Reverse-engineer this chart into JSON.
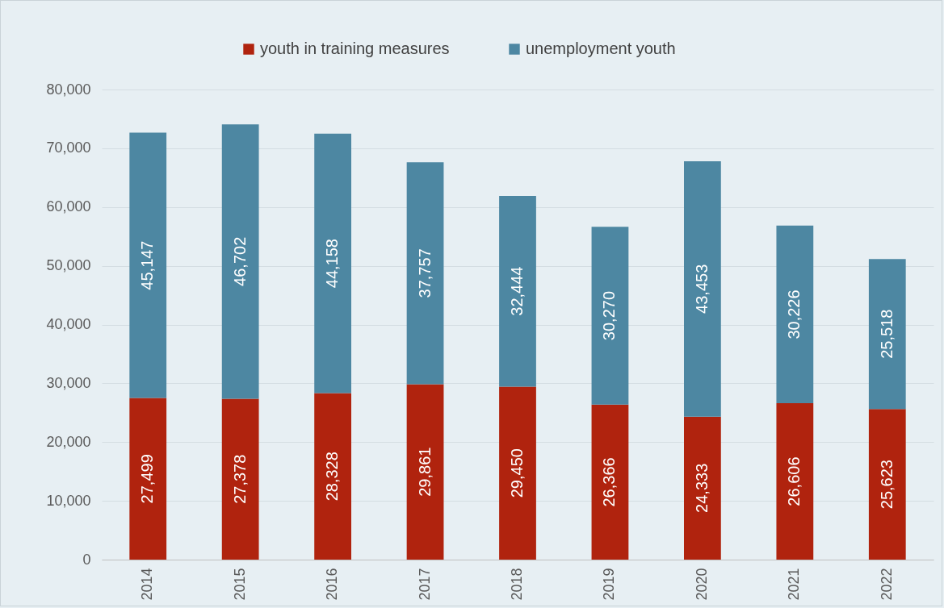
{
  "chart_data": {
    "type": "bar",
    "stacked": true,
    "categories": [
      "2014",
      "2015",
      "2016",
      "2017",
      "2018",
      "2019",
      "2020",
      "2021",
      "2022"
    ],
    "series": [
      {
        "name": "youth in training measures",
        "color": "#b0230e",
        "values": [
          27499,
          27378,
          28328,
          29861,
          29450,
          26366,
          24333,
          26606,
          25623
        ],
        "value_labels": [
          "27,499",
          "27,378",
          "28,328",
          "29,861",
          "29,450",
          "26,366",
          "24,333",
          "26,606",
          "25,623"
        ]
      },
      {
        "name": "unemployment youth",
        "color": "#4d87a2",
        "values": [
          45147,
          46702,
          44158,
          37757,
          32444,
          30270,
          43453,
          30226,
          25518
        ],
        "value_labels": [
          "45,147",
          "46,702",
          "44,158",
          "37,757",
          "32,444",
          "30,270",
          "43,453",
          "30,226",
          "25,518"
        ]
      }
    ],
    "ylim": [
      0,
      80000
    ],
    "yticks": [
      {
        "value": 0,
        "label": "0"
      },
      {
        "value": 10000,
        "label": "10,000"
      },
      {
        "value": 20000,
        "label": "20,000"
      },
      {
        "value": 30000,
        "label": "30,000"
      },
      {
        "value": 40000,
        "label": "40,000"
      },
      {
        "value": 50000,
        "label": "50,000"
      },
      {
        "value": 60000,
        "label": "60,000"
      },
      {
        "value": 70000,
        "label": "70,000"
      },
      {
        "value": 80000,
        "label": "80,000"
      }
    ],
    "grid": "y",
    "legend": "top"
  }
}
